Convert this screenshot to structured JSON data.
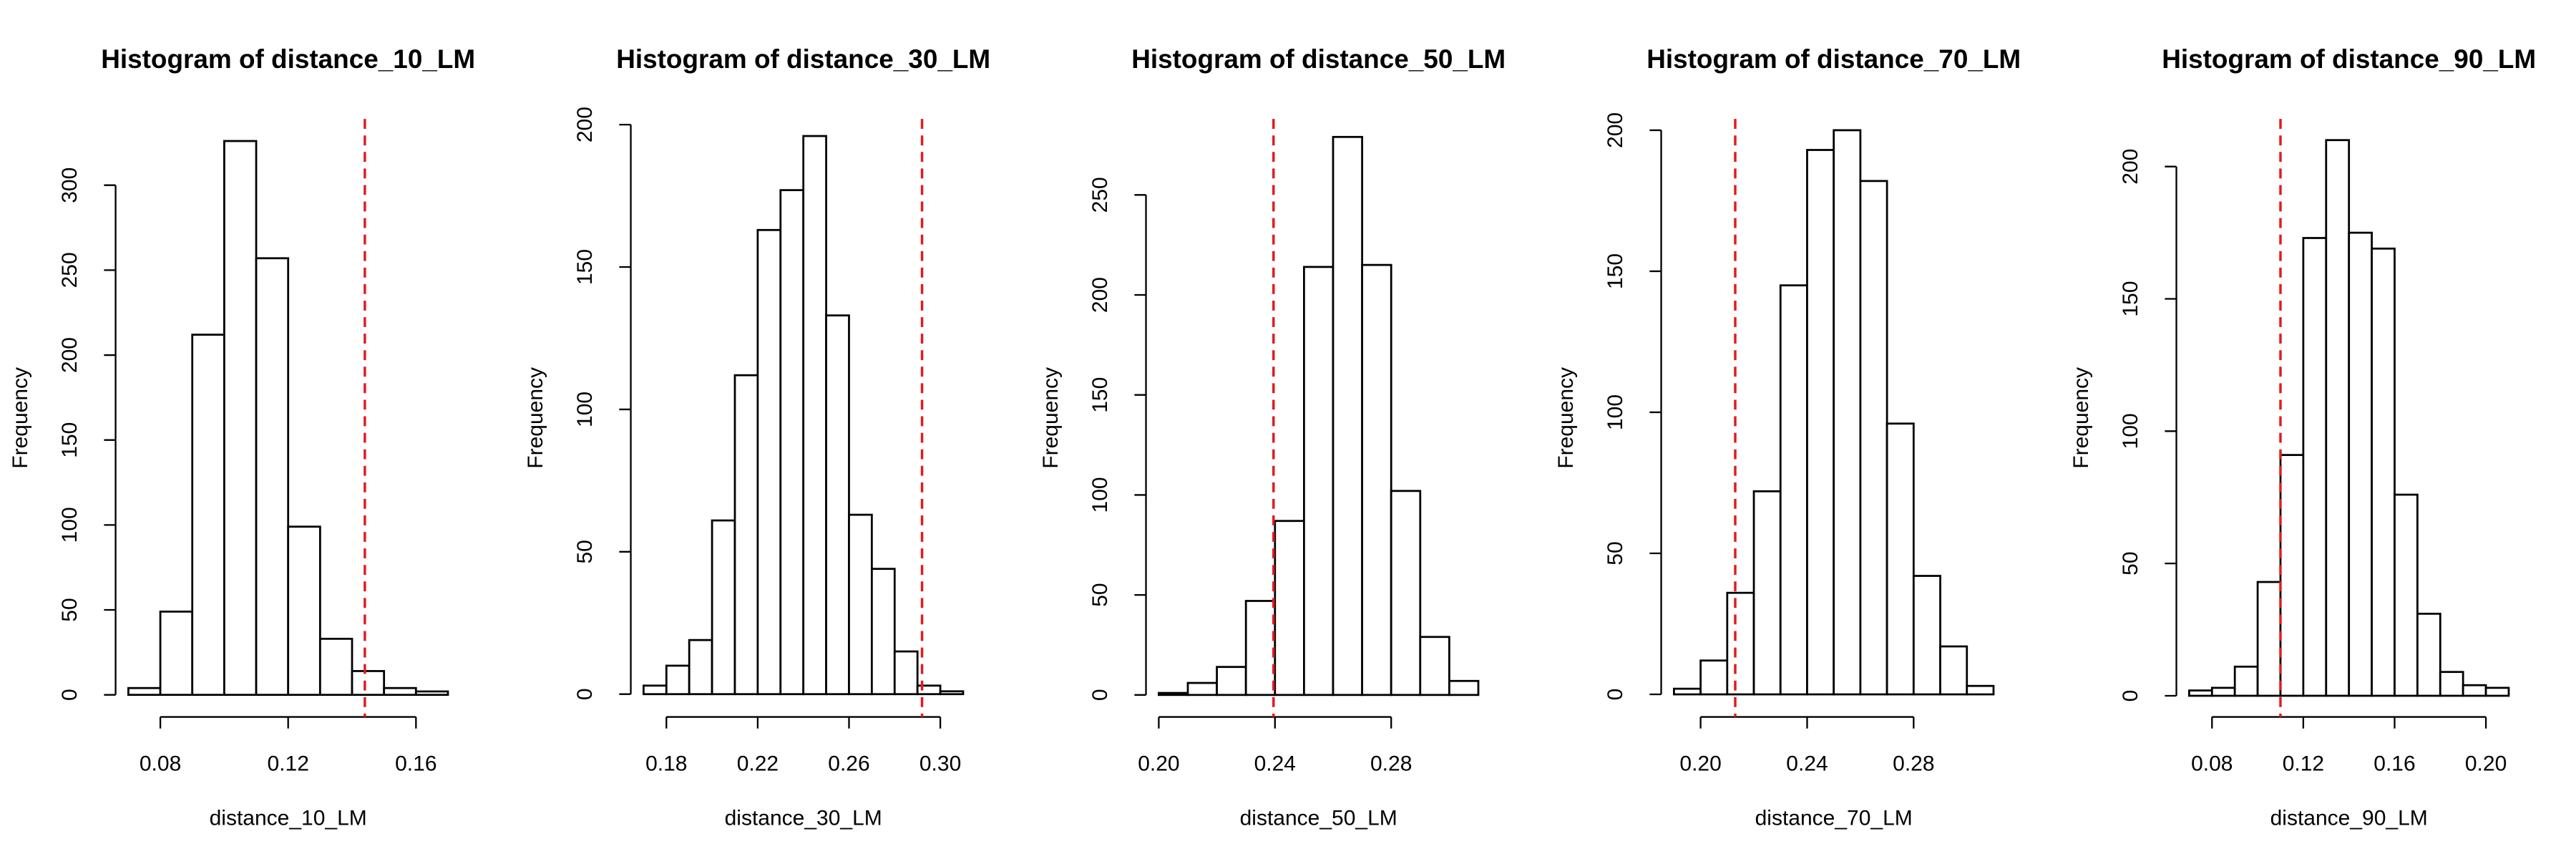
{
  "chart_data": [
    {
      "type": "histogram",
      "title": "Histogram of distance_10_LM",
      "xlabel": "distance_10_LM",
      "ylabel": "Frequency",
      "bins": [
        0.07,
        0.08,
        0.09,
        0.1,
        0.11,
        0.12,
        0.13,
        0.14,
        0.15,
        0.16,
        0.17
      ],
      "counts": [
        4,
        49,
        212,
        326,
        257,
        99,
        33,
        14,
        4,
        2
      ],
      "xlim": [
        0.066,
        0.174
      ],
      "ylim": [
        -13,
        339
      ],
      "xticks": [
        0.08,
        0.12,
        0.16
      ],
      "yticks": [
        0,
        50,
        100,
        150,
        200,
        250,
        300
      ],
      "color": "#ffffff",
      "vline": 0.144,
      "vline_color": "#e41a1c"
    },
    {
      "type": "histogram",
      "title": "Histogram of distance_30_LM",
      "xlabel": "distance_30_LM",
      "ylabel": "Frequency",
      "bins": [
        0.17,
        0.18,
        0.19,
        0.2,
        0.21,
        0.22,
        0.23,
        0.24,
        0.25,
        0.26,
        0.27,
        0.28,
        0.29,
        0.3,
        0.31
      ],
      "counts": [
        3,
        10,
        19,
        61,
        112,
        163,
        177,
        196,
        133,
        63,
        44,
        15,
        3,
        1
      ],
      "xlim": [
        0.1644,
        0.3156
      ],
      "ylim": [
        -8,
        202
      ],
      "xticks": [
        0.18,
        0.22,
        0.26,
        {
          "value": 0.3,
          "label": "0.30"
        }
      ],
      "yticks": [
        0,
        50,
        100,
        150,
        200
      ],
      "color": "#ffffff",
      "vline": 0.292,
      "vline_color": "#e41a1c"
    },
    {
      "type": "histogram",
      "title": "Histogram of distance_50_LM",
      "xlabel": "distance_50_LM",
      "ylabel": "Frequency",
      "bins": [
        0.2,
        0.21,
        0.22,
        0.23,
        0.24,
        0.25,
        0.26,
        0.27,
        0.28,
        0.29,
        0.3,
        0.31
      ],
      "counts": [
        1,
        6,
        14,
        47,
        87,
        214,
        279,
        215,
        102,
        29,
        7
      ],
      "xlim": [
        0.1956,
        0.3144
      ],
      "ylim": [
        -11,
        288
      ],
      "xticks": [
        {
          "value": 0.2,
          "label": "0.20"
        },
        0.24,
        0.28
      ],
      "yticks": [
        0,
        50,
        100,
        150,
        200,
        250
      ],
      "color": "#ffffff",
      "vline": 0.2395,
      "vline_color": "#e41a1c"
    },
    {
      "type": "histogram",
      "title": "Histogram of distance_70_LM",
      "xlabel": "distance_70_LM",
      "ylabel": "Frequency",
      "bins": [
        0.19,
        0.2,
        0.21,
        0.22,
        0.23,
        0.24,
        0.25,
        0.26,
        0.27,
        0.28,
        0.29,
        0.3,
        0.31
      ],
      "counts": [
        2,
        12,
        36,
        72,
        145,
        193,
        200,
        182,
        96,
        42,
        17,
        3
      ],
      "xlim": [
        0.1852,
        0.3148
      ],
      "ylim": [
        -8,
        204
      ],
      "xticks": [
        {
          "value": 0.2,
          "label": "0.20"
        },
        0.24,
        0.28
      ],
      "yticks": [
        0,
        50,
        100,
        150,
        200
      ],
      "color": "#ffffff",
      "vline": 0.213,
      "vline_color": "#e41a1c"
    },
    {
      "type": "histogram",
      "title": "Histogram of distance_90_LM",
      "xlabel": "distance_90_LM",
      "ylabel": "Frequency",
      "bins": [
        0.07,
        0.08,
        0.09,
        0.1,
        0.11,
        0.12,
        0.13,
        0.14,
        0.15,
        0.16,
        0.17,
        0.18,
        0.19,
        0.2,
        0.21
      ],
      "counts": [
        2,
        3,
        11,
        43,
        91,
        173,
        210,
        175,
        169,
        76,
        31,
        9,
        4,
        3
      ],
      "xlim": [
        0.0644,
        0.2156
      ],
      "ylim": [
        -8,
        218
      ],
      "xticks": [
        0.08,
        0.12,
        0.16,
        {
          "value": 0.2,
          "label": "0.20"
        }
      ],
      "yticks": [
        0,
        50,
        100,
        150,
        200
      ],
      "color": "#ffffff",
      "vline": 0.11,
      "vline_color": "#e41a1c"
    }
  ]
}
